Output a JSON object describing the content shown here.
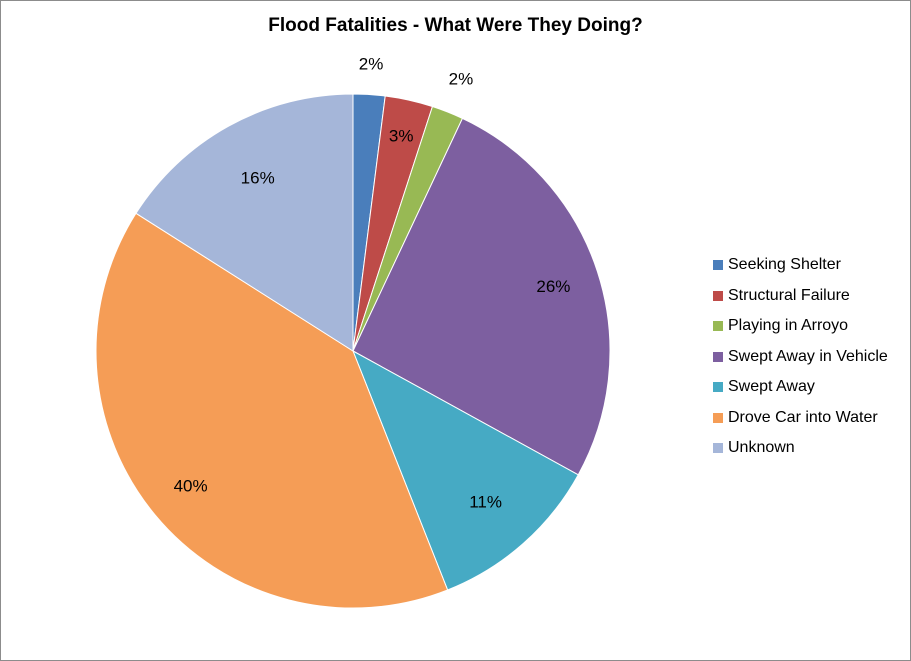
{
  "chart_data": {
    "type": "pie",
    "title": "Flood Fatalities - What Were They Doing?",
    "categories": [
      "Seeking Shelter",
      "Structural Failure",
      "Playing in Arroyo",
      "Swept Away in Vehicle",
      "Swept Away",
      "Drove Car into Water",
      "Unknown"
    ],
    "values": [
      2,
      3,
      2,
      26,
      11,
      40,
      16
    ],
    "value_labels": [
      "2%",
      "3%",
      "2%",
      "26%",
      "11%",
      "40%",
      "16%"
    ],
    "colors": [
      "#4A7EBB",
      "#BE4B48",
      "#98B954",
      "#7D5FA0",
      "#46AAC4",
      "#F59D56",
      "#A5B6D9"
    ],
    "start_angle_deg": 0,
    "direction": "clockwise",
    "legend_position": "right"
  }
}
